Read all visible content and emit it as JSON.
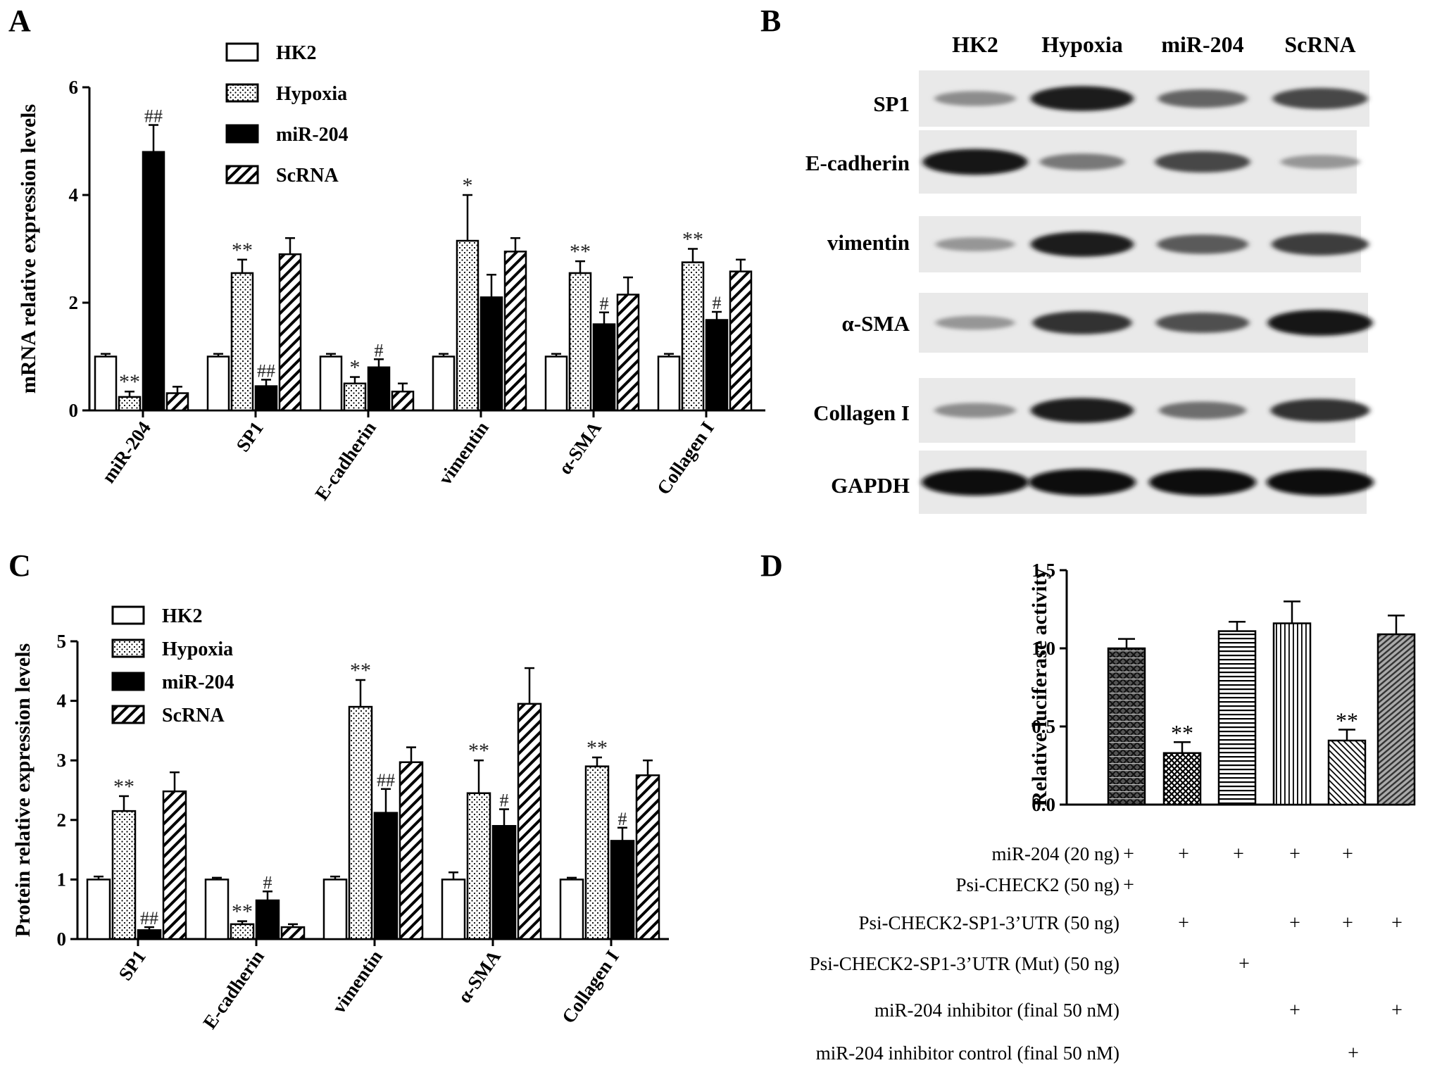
{
  "patterns": {
    "HK2": "open",
    "Hypoxia": "dots",
    "miR-204": "solid",
    "ScRNA": "hatch",
    "d1": "crosshatch-dark",
    "d2": "checker",
    "d3": "horizontal",
    "d4": "vertical",
    "d5": "diagonal-fine",
    "d6": "diagonal-coarse"
  },
  "chart_data": [
    {
      "panel": "A",
      "type": "bar",
      "ylabel": "mRNA relative expression levels",
      "ylim": [
        0,
        6
      ],
      "yticks": [
        "0",
        "2",
        "4",
        "6"
      ],
      "categories": [
        "miR-204",
        "SP1",
        "E-cadherin",
        "vimentin",
        "α-SMA",
        "Collagen I"
      ],
      "legend": [
        "HK2",
        "Hypoxia",
        "miR-204",
        "ScRNA"
      ],
      "series": [
        {
          "name": "HK2",
          "values": [
            1.0,
            1.0,
            1.0,
            1.0,
            1.0,
            1.0
          ],
          "errors": [
            0.05,
            0.05,
            0.05,
            0.05,
            0.05,
            0.05
          ],
          "annotations": [
            "",
            "",
            "",
            "",
            "",
            ""
          ]
        },
        {
          "name": "Hypoxia",
          "values": [
            0.25,
            2.55,
            0.5,
            3.15,
            2.55,
            2.75
          ],
          "errors": [
            0.1,
            0.25,
            0.12,
            0.85,
            0.22,
            0.25
          ],
          "annotations": [
            "**",
            "**",
            "*",
            "*",
            "**",
            "**"
          ]
        },
        {
          "name": "miR-204",
          "values": [
            4.8,
            0.45,
            0.8,
            2.1,
            1.6,
            1.68
          ],
          "errors": [
            0.5,
            0.12,
            0.15,
            0.42,
            0.22,
            0.15
          ],
          "annotations": [
            "##",
            "##",
            "#",
            "",
            "#",
            "#"
          ]
        },
        {
          "name": "ScRNA",
          "values": [
            0.32,
            2.9,
            0.35,
            2.95,
            2.15,
            2.58
          ],
          "errors": [
            0.12,
            0.3,
            0.15,
            0.25,
            0.32,
            0.22
          ],
          "annotations": [
            "",
            "",
            "",
            "",
            "",
            ""
          ]
        }
      ]
    },
    {
      "panel": "C",
      "type": "bar",
      "ylabel": "Protein relative expression levels",
      "ylim": [
        0,
        5
      ],
      "yticks": [
        "0",
        "1",
        "2",
        "3",
        "4",
        "5"
      ],
      "categories": [
        "SP1",
        "E-cadherin",
        "vimentin",
        "α-SMA",
        "Collagen I"
      ],
      "legend": [
        "HK2",
        "Hypoxia",
        "miR-204",
        "ScRNA"
      ],
      "series": [
        {
          "name": "HK2",
          "values": [
            1.0,
            1.0,
            1.0,
            1.0,
            1.0
          ],
          "errors": [
            0.05,
            0.03,
            0.05,
            0.12,
            0.03
          ],
          "annotations": [
            "",
            "",
            "",
            "",
            ""
          ]
        },
        {
          "name": "Hypoxia",
          "values": [
            2.15,
            0.25,
            3.9,
            2.45,
            2.9
          ],
          "errors": [
            0.25,
            0.05,
            0.45,
            0.55,
            0.15
          ],
          "annotations": [
            "**",
            "**",
            "**",
            "**",
            "**"
          ]
        },
        {
          "name": "miR-204",
          "values": [
            0.15,
            0.65,
            2.12,
            1.9,
            1.65
          ],
          "errors": [
            0.05,
            0.15,
            0.4,
            0.28,
            0.22
          ],
          "annotations": [
            "##",
            "#",
            "##",
            "#",
            "#"
          ]
        },
        {
          "name": "ScRNA",
          "values": [
            2.48,
            0.2,
            2.97,
            3.95,
            2.75
          ],
          "errors": [
            0.32,
            0.05,
            0.25,
            0.6,
            0.25
          ],
          "annotations": [
            "",
            "",
            "",
            "",
            ""
          ]
        }
      ]
    },
    {
      "panel": "D",
      "type": "bar",
      "ylabel": "Relative luciferase activity",
      "ylim": [
        0,
        1.5
      ],
      "yticks": [
        "0.0",
        "0.5",
        "1.0",
        "1.5"
      ],
      "values": [
        1.0,
        0.33,
        1.11,
        1.16,
        0.41,
        1.09
      ],
      "errors": [
        0.06,
        0.07,
        0.06,
        0.14,
        0.07,
        0.12
      ],
      "annotations": [
        "",
        "**",
        "",
        "",
        "**",
        ""
      ],
      "conditions": [
        {
          "label": "miR-204 (20 ng)",
          "marks": [
            "+",
            "+",
            "+",
            "+",
            "+",
            ""
          ]
        },
        {
          "label": "Psi-CHECK2 (50 ng)",
          "marks": [
            "+",
            "",
            "",
            "",
            "",
            ""
          ]
        },
        {
          "label": "Psi-CHECK2-SP1-3’UTR (50 ng)",
          "marks": [
            "",
            "+",
            "",
            "+",
            "+",
            "+"
          ]
        },
        {
          "label": "Psi-CHECK2-SP1-3’UTR (Mut) (50 ng)",
          "marks": [
            "",
            "",
            "+",
            "",
            "",
            ""
          ]
        },
        {
          "label": "miR-204 inhibitor (final 50 nM)",
          "marks": [
            "",
            "",
            "",
            "+",
            "",
            "+"
          ]
        },
        {
          "label": "miR-204 inhibitor control (final 50 nM)",
          "marks": [
            "",
            "",
            "",
            "",
            "+",
            ""
          ]
        }
      ]
    }
  ],
  "panel_letters": [
    "A",
    "B",
    "C",
    "D"
  ],
  "western_blot": {
    "lanes": [
      "HK2",
      "Hypoxia",
      "miR-204",
      "ScRNA"
    ],
    "rows": [
      {
        "label": "SP1",
        "intensity": [
          0.35,
          0.9,
          0.55,
          0.7
        ]
      },
      {
        "label": "E-cadherin",
        "intensity": [
          0.95,
          0.45,
          0.7,
          0.3
        ]
      },
      {
        "label": "vimentin",
        "intensity": [
          0.3,
          0.9,
          0.6,
          0.75
        ]
      },
      {
        "label": "α-SMA",
        "intensity": [
          0.3,
          0.8,
          0.65,
          0.95
        ]
      },
      {
        "label": "Collagen I",
        "intensity": [
          0.35,
          0.9,
          0.5,
          0.8
        ]
      },
      {
        "label": "GAPDH",
        "intensity": [
          1.0,
          1.0,
          1.0,
          1.0
        ]
      }
    ]
  }
}
